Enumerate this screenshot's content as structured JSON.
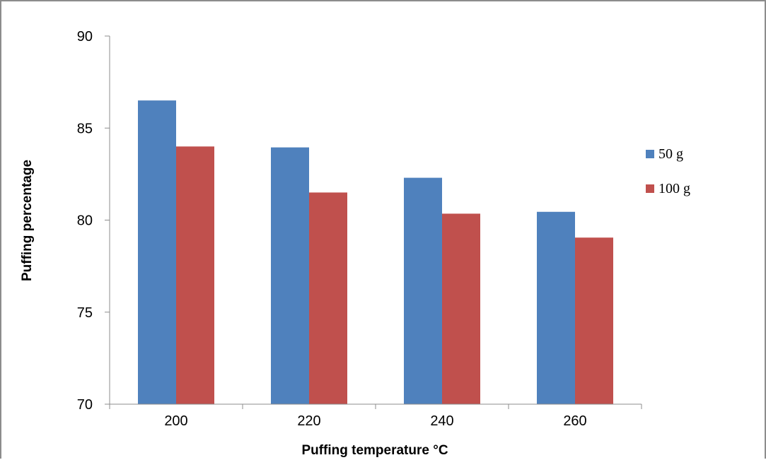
{
  "chart_data": {
    "type": "bar",
    "title": "",
    "xlabel": "Puffing temperature °C",
    "ylabel": "Puffing percentage",
    "categories": [
      "200",
      "220",
      "240",
      "260"
    ],
    "series": [
      {
        "name": "50 g",
        "values": [
          86.5,
          83.95,
          82.3,
          80.45
        ],
        "color": "#4f81bd"
      },
      {
        "name": "100 g",
        "values": [
          84.0,
          81.5,
          80.35,
          79.05
        ],
        "color": "#c0504d"
      }
    ],
    "ylim": [
      70,
      90
    ],
    "yticks": [
      70,
      75,
      80,
      85,
      90
    ],
    "grid": false,
    "legend_position": "right"
  }
}
